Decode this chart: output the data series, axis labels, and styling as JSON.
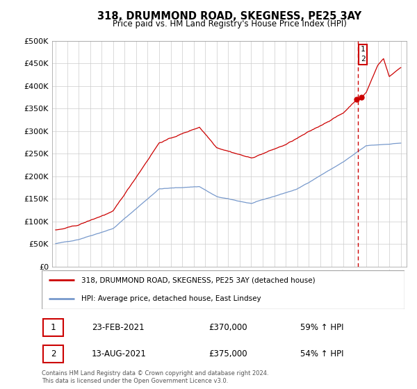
{
  "title": "318, DRUMMOND ROAD, SKEGNESS, PE25 3AY",
  "subtitle": "Price paid vs. HM Land Registry's House Price Index (HPI)",
  "red_label": "318, DRUMMOND ROAD, SKEGNESS, PE25 3AY (detached house)",
  "blue_label": "HPI: Average price, detached house, East Lindsey",
  "ylim": [
    0,
    500000
  ],
  "yticks": [
    0,
    50000,
    100000,
    150000,
    200000,
    250000,
    300000,
    350000,
    400000,
    450000,
    500000
  ],
  "red_color": "#cc0000",
  "blue_color": "#7799cc",
  "vline_color": "#cc0000",
  "annotation_box_color": "#cc0000",
  "transaction1": {
    "num": 1,
    "date": "23-FEB-2021",
    "price": "£370,000",
    "hpi": "59% ↑ HPI"
  },
  "transaction2": {
    "num": 2,
    "date": "13-AUG-2021",
    "price": "£375,000",
    "hpi": "54% ↑ HPI"
  },
  "footer": "Contains HM Land Registry data © Crown copyright and database right 2024.\nThis data is licensed under the Open Government Licence v3.0.",
  "background_color": "#ffffff",
  "grid_color": "#cccccc",
  "vline_x": 2021.3
}
